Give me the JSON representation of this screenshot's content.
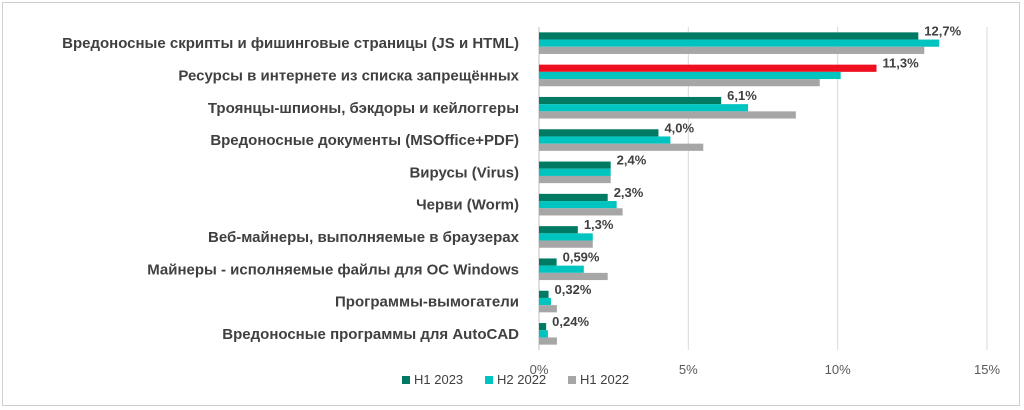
{
  "chart_data": {
    "type": "bar",
    "orientation": "horizontal",
    "categories": [
      "Вредоносные скрипты и фишинговые страницы (JS и HTML)",
      "Ресурсы в интернете из списка запрещённых",
      "Троянцы-шпионы, бэкдоры и кейлоггеры",
      "Вредоносные документы (MSOffice+PDF)",
      "Вирусы (Virus)",
      "Черви (Worm)",
      "Веб-майнеры, выполняемые в браузерах",
      "Майнеры - исполняемые файлы для ОС Windows",
      "Программы-вымогатели",
      "Вредоносные программы  для AutoCAD"
    ],
    "series": [
      {
        "name": "H1 2023",
        "color": "#007a63",
        "values": [
          12.7,
          11.3,
          6.1,
          4.0,
          2.4,
          2.3,
          1.3,
          0.59,
          0.32,
          0.24
        ]
      },
      {
        "name": "H2 2022",
        "color": "#00c4c0",
        "values": [
          13.4,
          10.1,
          7.0,
          4.4,
          2.4,
          2.6,
          1.8,
          1.5,
          0.4,
          0.3
        ]
      },
      {
        "name": "H1 2022",
        "color": "#a6a6a6",
        "values": [
          12.9,
          9.4,
          8.6,
          5.5,
          2.4,
          2.8,
          1.8,
          2.3,
          0.6,
          0.6
        ]
      }
    ],
    "highlight": {
      "category_index": 1,
      "series_index": 0,
      "color": "#f00f1e"
    },
    "data_labels": [
      "12,7%",
      "11,3%",
      "6,1%",
      "4,0%",
      "2,4%",
      "2,3%",
      "1,3%",
      "0,59%",
      "0,32%",
      "0,24%"
    ],
    "xlim": [
      0,
      15
    ],
    "x_ticks": [
      0,
      5,
      10,
      15
    ],
    "x_tick_labels": [
      "0%",
      "5%",
      "10%",
      "15%"
    ],
    "grid": true,
    "legend_position": "bottom"
  }
}
